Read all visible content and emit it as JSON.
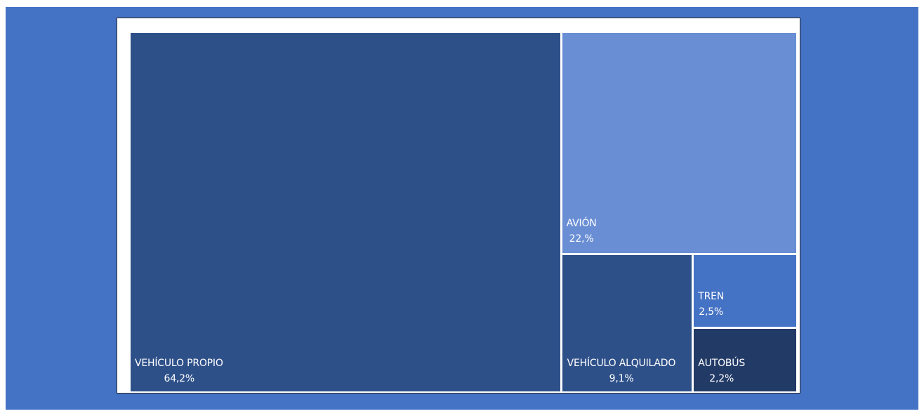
{
  "chart_data": {
    "type": "treemap",
    "title": "",
    "items": [
      {
        "label": "VEHÍCULO PROPIO",
        "value": 64.2,
        "value_label": "64,2%",
        "color": "#2e5089"
      },
      {
        "label": "AVIÓN",
        "value": 22.0,
        "value_label": "22,%",
        "color": "#698ed4"
      },
      {
        "label": "VEHÍCULO ALQUILADO",
        "value": 9.1,
        "value_label": "9,1%",
        "color": "#2e5089"
      },
      {
        "label": "TREN",
        "value": 2.5,
        "value_label": "2,5%",
        "color": "#4472c4"
      },
      {
        "label": "AUTOBÚS",
        "value": 2.2,
        "value_label": "2,2%",
        "color": "#223a66"
      }
    ],
    "background_color": "#4472c4",
    "border_color": "#ffffff"
  }
}
